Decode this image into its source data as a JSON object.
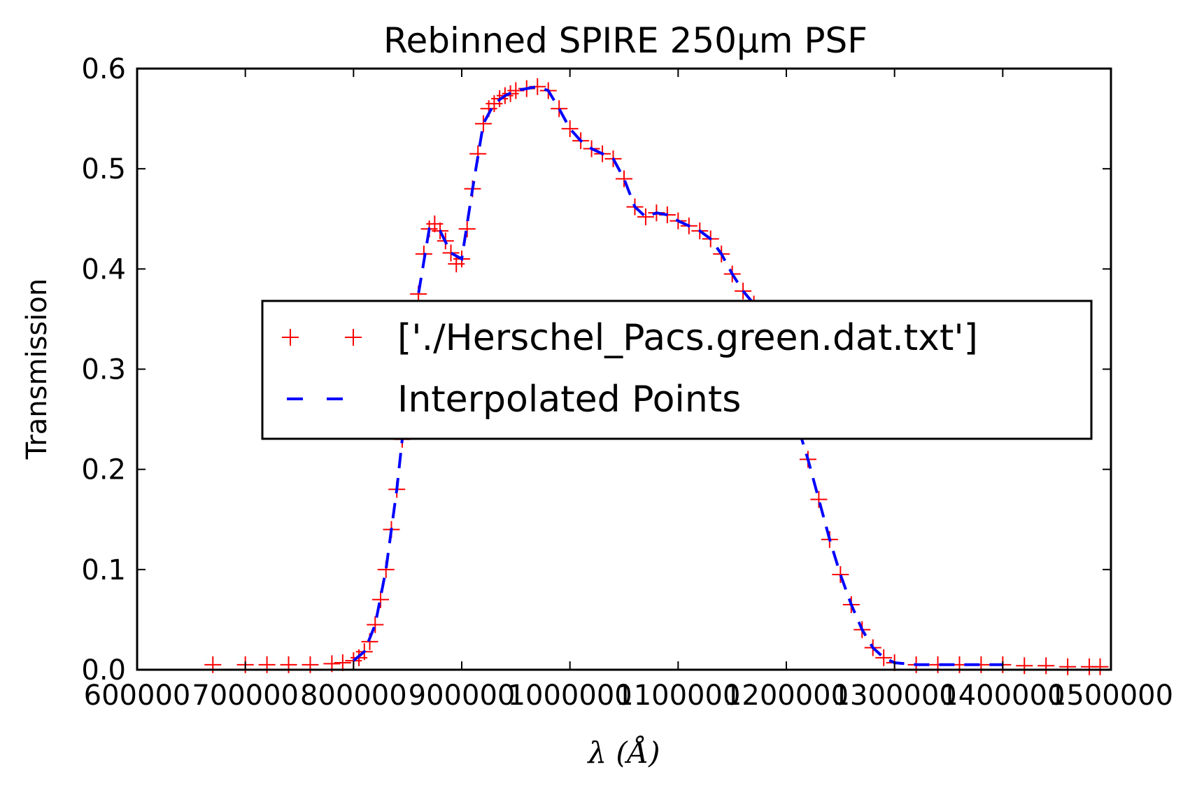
{
  "chart_data": {
    "type": "line",
    "title": "Rebinned SPIRE 250μm PSF",
    "xlabel": "λ (Å)",
    "ylabel": "Transmission",
    "xlim": [
      600000,
      1500000
    ],
    "ylim": [
      0,
      0.6
    ],
    "xticks": [
      600000,
      700000,
      800000,
      900000,
      1000000,
      1100000,
      1200000,
      1300000,
      1400000,
      1500000
    ],
    "xtick_labels": [
      "600000",
      "700000",
      "800000",
      "900000",
      "1000000",
      "1100000",
      "1200000",
      "1300000",
      "1400000",
      "1500000"
    ],
    "yticks": [
      0,
      0.1,
      0.2,
      0.3,
      0.4,
      0.5,
      0.6
    ],
    "ytick_labels": [
      "0.0",
      "0.1",
      "0.2",
      "0.3",
      "0.4",
      "0.5",
      "0.6"
    ],
    "legend_position": "center-right",
    "series": [
      {
        "name": "['./Herschel_Pacs.green.dat.txt']",
        "style": "markers-plus",
        "color": "#ff0000",
        "x": [
          670000,
          700000,
          720000,
          740000,
          760000,
          780000,
          790000,
          800000,
          805000,
          810000,
          815000,
          820000,
          825000,
          830000,
          835000,
          840000,
          845000,
          850000,
          855000,
          860000,
          865000,
          870000,
          875000,
          880000,
          885000,
          890000,
          895000,
          900000,
          905000,
          910000,
          915000,
          920000,
          925000,
          930000,
          935000,
          940000,
          945000,
          950000,
          960000,
          970000,
          980000,
          990000,
          1000000,
          1010000,
          1020000,
          1030000,
          1040000,
          1050000,
          1060000,
          1070000,
          1080000,
          1090000,
          1100000,
          1110000,
          1120000,
          1130000,
          1140000,
          1150000,
          1160000,
          1170000,
          1180000,
          1190000,
          1200000,
          1210000,
          1220000,
          1230000,
          1240000,
          1250000,
          1260000,
          1270000,
          1280000,
          1290000,
          1300000,
          1320000,
          1340000,
          1360000,
          1380000,
          1400000,
          1420000,
          1440000,
          1460000,
          1480000,
          1490000
        ],
        "values": [
          0.005,
          0.005,
          0.005,
          0.005,
          0.005,
          0.006,
          0.007,
          0.009,
          0.012,
          0.018,
          0.028,
          0.045,
          0.07,
          0.1,
          0.14,
          0.18,
          0.23,
          0.28,
          0.33,
          0.375,
          0.415,
          0.44,
          0.445,
          0.438,
          0.428,
          0.416,
          0.405,
          0.41,
          0.44,
          0.48,
          0.515,
          0.545,
          0.56,
          0.565,
          0.57,
          0.573,
          0.575,
          0.578,
          0.58,
          0.582,
          0.578,
          0.56,
          0.54,
          0.528,
          0.52,
          0.515,
          0.51,
          0.49,
          0.462,
          0.452,
          0.456,
          0.454,
          0.448,
          0.443,
          0.438,
          0.43,
          0.415,
          0.395,
          0.378,
          0.365,
          0.345,
          0.315,
          0.28,
          0.245,
          0.21,
          0.17,
          0.13,
          0.095,
          0.065,
          0.04,
          0.022,
          0.012,
          0.007,
          0.005,
          0.005,
          0.005,
          0.005,
          0.005,
          0.004,
          0.004,
          0.003,
          0.003,
          0.003
        ]
      },
      {
        "name": "Interpolated Points",
        "style": "dashed-line",
        "color": "#0000ff",
        "x": [
          800000,
          810000,
          820000,
          830000,
          840000,
          850000,
          860000,
          870000,
          880000,
          890000,
          900000,
          910000,
          920000,
          930000,
          940000,
          950000,
          960000,
          970000,
          980000,
          990000,
          1000000,
          1010000,
          1020000,
          1030000,
          1040000,
          1050000,
          1060000,
          1070000,
          1080000,
          1090000,
          1100000,
          1110000,
          1120000,
          1130000,
          1140000,
          1150000,
          1160000,
          1170000,
          1180000,
          1190000,
          1200000,
          1210000,
          1220000,
          1230000,
          1240000,
          1250000,
          1260000,
          1270000,
          1280000,
          1290000,
          1300000,
          1320000,
          1340000,
          1360000,
          1380000,
          1400000
        ],
        "values": [
          0.009,
          0.018,
          0.045,
          0.1,
          0.18,
          0.28,
          0.375,
          0.44,
          0.438,
          0.416,
          0.41,
          0.48,
          0.545,
          0.565,
          0.573,
          0.578,
          0.58,
          0.582,
          0.578,
          0.56,
          0.54,
          0.528,
          0.52,
          0.515,
          0.51,
          0.49,
          0.462,
          0.452,
          0.456,
          0.454,
          0.448,
          0.443,
          0.438,
          0.43,
          0.415,
          0.395,
          0.378,
          0.365,
          0.345,
          0.315,
          0.28,
          0.245,
          0.21,
          0.17,
          0.13,
          0.095,
          0.065,
          0.04,
          0.022,
          0.012,
          0.007,
          0.005,
          0.005,
          0.005,
          0.005,
          0.005
        ]
      }
    ]
  }
}
